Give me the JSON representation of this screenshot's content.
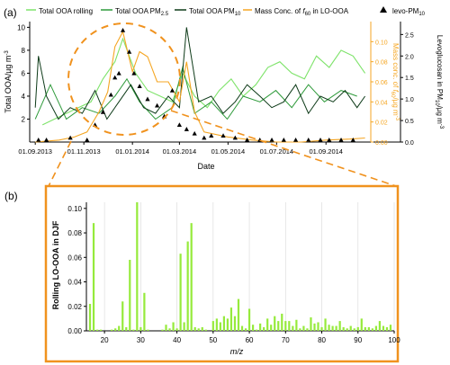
{
  "panel_a": {
    "label": "(a)",
    "xlabel": "Date",
    "ylabel_left": "Total OOA/µg m",
    "ylabel_left_sup": "-3",
    "ylabel_mid_prefix": "Mass conc. of ",
    "ylabel_mid_f": "f",
    "ylabel_mid_sub": "60",
    "ylabel_mid_unit": "/µg m",
    "ylabel_mid_sup": "-3",
    "ylabel_right_prefix": "Levoglucosan in PM",
    "ylabel_right_sub": "10",
    "ylabel_right_unit": "/µg m",
    "ylabel_right_sup": "-3",
    "left_ticks": [
      "2",
      "4",
      "6",
      "8",
      "10"
    ],
    "mid_ticks": [
      "0.00",
      "0.02",
      "0.04",
      "0.06",
      "0.08",
      "0.10"
    ],
    "right_ticks": [
      "0.0",
      "0.5",
      "1.0",
      "1.5",
      "2.0",
      "2.5"
    ],
    "x_ticks": [
      "01.09.2013",
      "01.11.2013",
      "01.01.2014",
      "01.03.2014",
      "01.05.2014",
      "01.07.2014",
      "01.09.2014"
    ]
  },
  "legend": {
    "item1": "Total OOA rolling",
    "item2_main": "Total OOA PM",
    "item2_sub": "2.5",
    "item3_main": "Total OOA PM",
    "item3_sub": "10",
    "item4_main": "Mass Conc. of ",
    "item4_f": "f",
    "item4_sub": "60",
    "item4_tail": " in LO-OOA",
    "item5_main": "levo-PM",
    "item5_sub": "10"
  },
  "panel_b": {
    "label": "(b)",
    "xlabel": "m/z",
    "ylabel": "Rolling LO-OOA in DJF",
    "x_ticks": [
      "20",
      "30",
      "40",
      "50",
      "60",
      "70",
      "80",
      "90",
      "100"
    ],
    "y_ticks": [
      "0.00",
      "0.02",
      "0.04",
      "0.06",
      "0.08",
      "0.10"
    ]
  },
  "colors": {
    "rolling": "#7ee36a",
    "pm25": "#2e9a3a",
    "pm10": "#0d3a18",
    "f60": "#f5a623",
    "levo": "#000000",
    "bars": "#96ea3c",
    "frame_b": "#f0921e"
  },
  "chart_data": [
    {
      "type": "line",
      "x_unit": "date",
      "x_range": [
        "2013-08-25",
        "2014-10-25"
      ],
      "series": [
        {
          "name": "Total OOA rolling",
          "x": [
            "2013-09-10",
            "2013-09-25",
            "2013-10-10",
            "2013-10-25",
            "2013-11-10",
            "2013-11-25",
            "2013-12-10",
            "2013-12-20",
            "2014-01-05",
            "2014-01-20",
            "2014-02-05",
            "2014-02-20",
            "2014-03-05",
            "2014-03-20",
            "2014-04-05",
            "2014-04-20",
            "2014-05-05",
            "2014-05-20",
            "2014-06-05",
            "2014-06-20",
            "2014-07-05",
            "2014-07-20",
            "2014-08-05",
            "2014-08-20",
            "2014-09-05",
            "2014-09-20",
            "2014-10-05",
            "2014-10-20"
          ],
          "values": [
            1.5,
            2.0,
            2.5,
            3.0,
            3.5,
            5.5,
            7.0,
            9.0,
            6.0,
            4.5,
            4.0,
            3.5,
            6.0,
            4.0,
            3.0,
            4.5,
            5.5,
            4.0,
            5.0,
            6.5,
            7.0,
            6.0,
            5.5,
            7.5,
            6.5,
            8.0,
            7.5,
            6.0
          ]
        },
        {
          "name": "Total OOA PM2.5",
          "x": [
            "2013-09-01",
            "2013-09-20",
            "2013-10-10",
            "2013-10-30",
            "2013-11-20",
            "2013-12-10",
            "2013-12-25",
            "2014-01-10",
            "2014-01-30",
            "2014-02-20",
            "2014-03-05",
            "2014-03-20",
            "2014-04-10",
            "2014-04-30",
            "2014-05-20",
            "2014-06-10",
            "2014-06-30",
            "2014-07-20",
            "2014-08-10",
            "2014-08-30",
            "2014-09-20",
            "2014-10-10"
          ],
          "values": [
            2.0,
            5.0,
            2.0,
            3.0,
            2.5,
            4.0,
            5.5,
            3.5,
            2.0,
            3.0,
            6.5,
            2.5,
            3.5,
            2.0,
            4.0,
            3.5,
            4.5,
            3.0,
            5.0,
            3.5,
            4.5,
            4.0
          ]
        },
        {
          "name": "Total OOA PM10",
          "x": [
            "2013-09-01",
            "2013-09-05",
            "2013-09-15",
            "2013-09-30",
            "2013-10-15",
            "2013-10-30",
            "2013-11-15",
            "2013-11-30",
            "2013-12-15",
            "2013-12-30",
            "2014-01-15",
            "2014-01-30",
            "2014-02-15",
            "2014-03-01",
            "2014-03-10",
            "2014-03-25",
            "2014-04-10",
            "2014-04-25",
            "2014-05-10",
            "2014-05-25",
            "2014-06-10",
            "2014-06-25",
            "2014-07-10",
            "2014-07-25",
            "2014-08-10",
            "2014-08-25",
            "2014-09-10",
            "2014-09-25",
            "2014-10-10",
            "2014-10-20"
          ],
          "values": [
            3.0,
            7.5,
            4.0,
            2.0,
            3.0,
            2.5,
            4.5,
            2.0,
            3.5,
            5.0,
            3.0,
            2.5,
            4.0,
            3.0,
            10.0,
            3.5,
            4.0,
            2.5,
            3.5,
            5.0,
            4.0,
            3.0,
            3.5,
            5.0,
            2.5,
            4.0,
            3.5,
            4.5,
            3.0,
            4.0
          ]
        },
        {
          "name": "Mass Conc. of f60 in LO-OOA",
          "axis": "mid",
          "x": [
            "2013-09-01",
            "2013-10-01",
            "2013-10-20",
            "2013-11-05",
            "2013-11-20",
            "2013-12-01",
            "2013-12-10",
            "2013-12-20",
            "2014-01-01",
            "2014-01-10",
            "2014-01-20",
            "2014-02-01",
            "2014-02-15",
            "2014-03-01",
            "2014-03-10",
            "2014-03-20",
            "2014-04-01",
            "2014-05-01",
            "2014-06-01",
            "2014-07-01",
            "2014-08-01",
            "2014-09-01",
            "2014-10-01",
            "2014-10-20"
          ],
          "values": [
            0.0,
            0.002,
            0.005,
            0.01,
            0.03,
            0.05,
            0.095,
            0.11,
            0.07,
            0.09,
            0.085,
            0.06,
            0.06,
            0.04,
            0.08,
            0.03,
            0.01,
            0.005,
            0.002,
            0.0,
            0.0,
            0.002,
            0.003,
            0.004
          ]
        }
      ],
      "points": {
        "name": "levo-PM10",
        "axis": "right",
        "x": [
          "2013-09-05",
          "2013-09-15",
          "2013-10-15",
          "2013-11-05",
          "2013-11-15",
          "2013-11-25",
          "2013-12-05",
          "2013-12-10",
          "2013-12-15",
          "2013-12-20",
          "2013-12-28",
          "2014-01-03",
          "2014-01-10",
          "2014-01-20",
          "2014-02-01",
          "2014-02-10",
          "2014-02-20",
          "2014-03-01",
          "2014-03-10",
          "2014-03-20",
          "2014-04-01",
          "2014-04-10",
          "2014-04-25",
          "2014-05-10",
          "2014-05-25",
          "2014-06-10",
          "2014-06-25",
          "2014-07-10",
          "2014-07-25",
          "2014-08-10",
          "2014-08-25",
          "2014-09-05",
          "2014-09-20",
          "2014-10-05"
        ],
        "values": [
          0.05,
          0.05,
          0.1,
          0.05,
          0.4,
          0.7,
          1.1,
          1.5,
          1.6,
          2.6,
          2.1,
          1.6,
          1.3,
          1.0,
          0.85,
          0.6,
          1.2,
          0.4,
          0.3,
          0.2,
          0.1,
          0.15,
          0.15,
          0.1,
          0.05,
          0.05,
          0.05,
          0.05,
          0.05,
          0.05,
          0.05,
          0.05,
          0.05,
          0.05
        ]
      },
      "xlim": [
        "2013-08-25",
        "2014-10-25"
      ],
      "ylim_left": [
        0,
        10.5
      ],
      "ylim_mid": [
        0,
        0.12
      ],
      "ylim_right": [
        0,
        2.8
      ],
      "legend_position": "top"
    },
    {
      "type": "bar",
      "x_unit": "m/z",
      "xlim": [
        15,
        100
      ],
      "ylim": [
        0,
        0.105
      ],
      "x": [
        16,
        17,
        18,
        19,
        22,
        23,
        24,
        25,
        26,
        27,
        28,
        29,
        30,
        31,
        32,
        36,
        37,
        38,
        39,
        40,
        41,
        42,
        43,
        44,
        45,
        46,
        47,
        48,
        50,
        51,
        52,
        53,
        54,
        55,
        56,
        57,
        58,
        59,
        60,
        61,
        62,
        63,
        64,
        65,
        66,
        67,
        68,
        69,
        70,
        71,
        72,
        73,
        74,
        75,
        76,
        77,
        78,
        79,
        80,
        81,
        82,
        83,
        84,
        85,
        86,
        87,
        88,
        89,
        90,
        91,
        92,
        93,
        94,
        95,
        96,
        97,
        98,
        99
      ],
      "values": [
        0.022,
        0.088,
        0.001,
        0.001,
        0.001,
        0.002,
        0.004,
        0.024,
        0.003,
        0.058,
        0.001,
        0.105,
        0.003,
        0.031,
        0.001,
        0.001,
        0.005,
        0.002,
        0.007,
        0.002,
        0.063,
        0.007,
        0.073,
        0.088,
        0.003,
        0.002,
        0.003,
        0.001,
        0.008,
        0.01,
        0.007,
        0.012,
        0.01,
        0.019,
        0.012,
        0.026,
        0.004,
        0.002,
        0.018,
        0.005,
        0.001,
        0.006,
        0.003,
        0.01,
        0.005,
        0.012,
        0.008,
        0.014,
        0.008,
        0.008,
        0.004,
        0.009,
        0.002,
        0.004,
        0.002,
        0.011,
        0.006,
        0.007,
        0.003,
        0.01,
        0.005,
        0.004,
        0.004,
        0.008,
        0.003,
        0.002,
        0.004,
        0.002,
        0.003,
        0.01,
        0.003,
        0.003,
        0.002,
        0.004,
        0.008,
        0.004,
        0.003,
        0.005
      ],
      "grid": true
    }
  ]
}
